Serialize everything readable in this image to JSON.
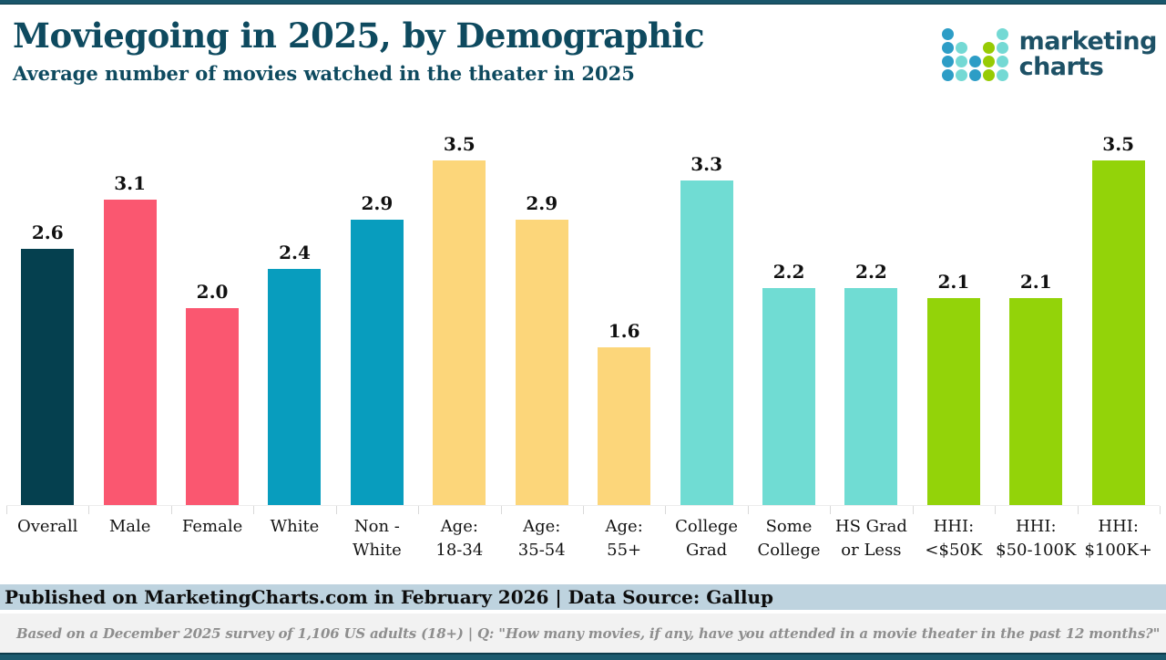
{
  "page": {
    "title": "Moviegoing in 2025, by Demographic",
    "subtitle": "Average number of movies watched in the theater in 2025"
  },
  "logo": {
    "name": "marketing-charts-logo",
    "text_line1": "marketing",
    "text_line2": "charts",
    "colors": {
      "blue": "#2d9dc6",
      "teal": "#74d9d4",
      "green": "#97cb04"
    },
    "dot_grid": [
      [
        "blue",
        null,
        null,
        null,
        "teal"
      ],
      [
        "blue",
        "teal",
        null,
        "green",
        "teal"
      ],
      [
        "blue",
        "teal",
        "blue",
        "green",
        "teal"
      ],
      [
        "blue",
        "teal",
        "blue",
        "green",
        "teal"
      ]
    ]
  },
  "chart_data": {
    "type": "bar",
    "title": "Moviegoing in 2025, by Demographic",
    "subtitle": "Average number of movies watched in the theater in 2025",
    "categories": [
      "Overall",
      "Male",
      "Female",
      "White",
      "Non -\nWhite",
      "Age:\n18-34",
      "Age:\n35-54",
      "Age:\n55+",
      "College\nGrad",
      "Some\nCollege",
      "HS Grad\nor Less",
      "HHI:\n<$50K",
      "HHI:\n$50-100K",
      "HHI:\n$100K+"
    ],
    "values": [
      2.6,
      3.1,
      2.0,
      2.4,
      2.9,
      3.5,
      2.9,
      1.6,
      3.3,
      2.2,
      2.2,
      2.1,
      2.1,
      3.5
    ],
    "value_labels": [
      "2.6",
      "3.1",
      "2.0",
      "2.4",
      "2.9",
      "3.5",
      "2.9",
      "1.6",
      "3.3",
      "2.2",
      "2.2",
      "2.1",
      "2.1",
      "3.5"
    ],
    "bar_colors": [
      "#05404f",
      "#fa5770",
      "#fa5770",
      "#089dbe",
      "#089dbe",
      "#fcd67a",
      "#fcd67a",
      "#fcd67a",
      "#70dcd3",
      "#70dcd3",
      "#70dcd3",
      "#93d309",
      "#93d309",
      "#93d309"
    ],
    "color_groups": {
      "overall": "#05404f",
      "gender": "#fa5770",
      "race": "#089dbe",
      "age": "#fcd67a",
      "education": "#70dcd3",
      "income": "#93d309"
    },
    "ylim": [
      0,
      3.9
    ],
    "grid": false,
    "legend": null,
    "xlabel": "",
    "ylabel": ""
  },
  "footer": {
    "published": "Published on MarketingCharts.com in February 2026 | Data Source: Gallup",
    "note": "Based on a December 2025 survey of 1,106 US adults (18+) | Q: \"How many movies, if any, have you attended in a movie theater in the past 12 months?\""
  }
}
